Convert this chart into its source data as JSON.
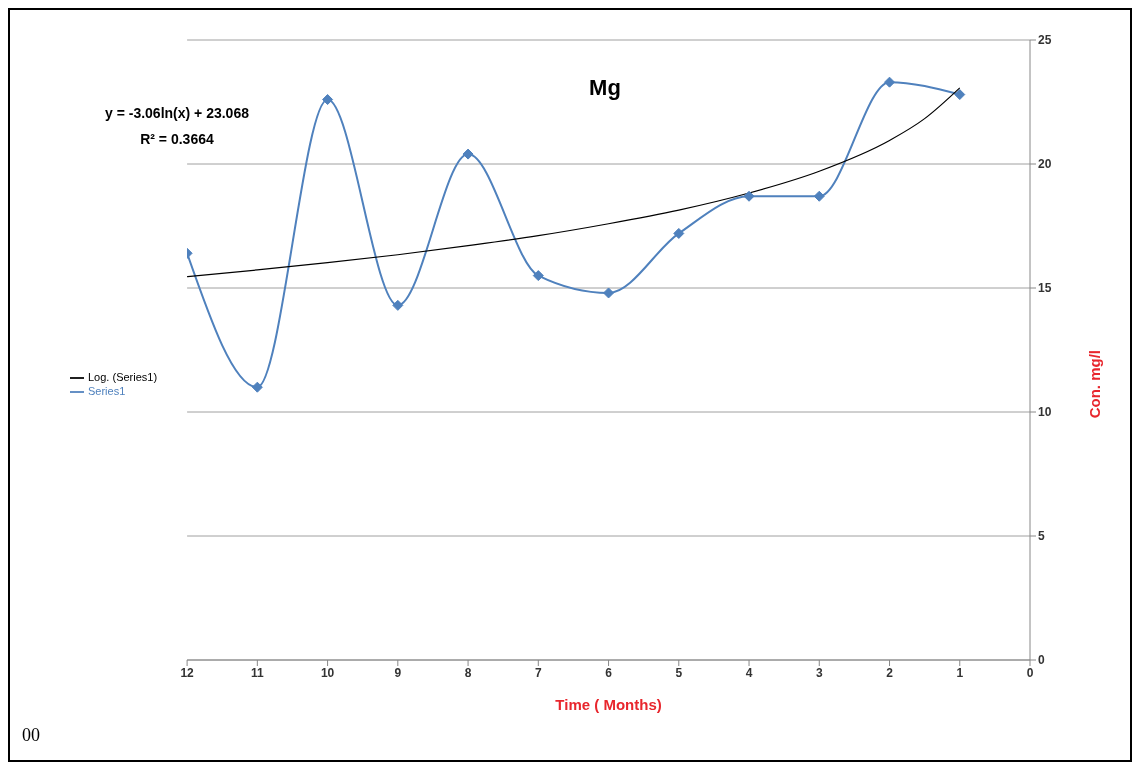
{
  "chart_data": {
    "type": "line",
    "title": "Mg",
    "xlabel": "Time ( Months)",
    "ylabel": "Con. mg/l",
    "x": [
      12,
      11,
      10,
      9,
      8,
      7,
      6,
      5,
      4,
      3,
      2,
      1
    ],
    "series": [
      {
        "name": "Series1",
        "color": "#4f81bd",
        "marker": "diamond",
        "values": [
          16.4,
          11.0,
          22.6,
          14.3,
          20.4,
          15.5,
          14.8,
          17.2,
          18.7,
          18.7,
          23.3,
          22.8
        ]
      },
      {
        "name": "Log. (Series1)",
        "color": "#000000",
        "marker": "none",
        "x": [
          12,
          11,
          10,
          9,
          8,
          7,
          6,
          5,
          4,
          3,
          2,
          1.5,
          1
        ],
        "values": [
          15.46,
          15.73,
          16.02,
          16.34,
          16.71,
          17.11,
          17.59,
          18.14,
          18.83,
          19.71,
          20.95,
          21.83,
          23.07
        ]
      }
    ],
    "xlim": [
      12,
      0
    ],
    "xticks": [
      12,
      11,
      10,
      9,
      8,
      7,
      6,
      5,
      4,
      3,
      2,
      1,
      0
    ],
    "ylim": [
      0,
      25
    ],
    "yticks": [
      0,
      5,
      10,
      15,
      20,
      25
    ],
    "grid": "y",
    "legend": "left",
    "annotations": [
      "y = -3.06ln(x) + 23.068",
      "R² = 0.3664",
      "00"
    ]
  }
}
